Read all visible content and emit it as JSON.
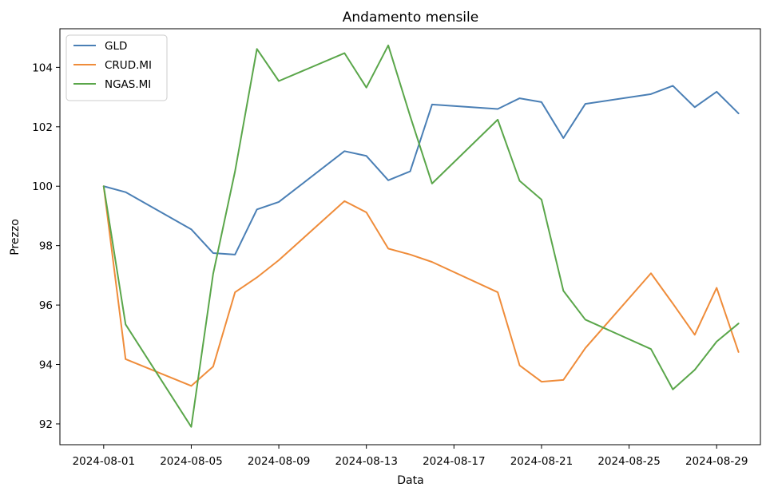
{
  "chart_data": {
    "type": "line",
    "title": "Andamento mensile",
    "xlabel": "Data",
    "ylabel": "Prezzo",
    "legend_position": "top-left",
    "grid": false,
    "xlim": [
      "2024-07-30",
      "2024-08-31"
    ],
    "ylim": [
      91.3,
      105.3
    ],
    "x_ticks": [
      "2024-08-01",
      "2024-08-05",
      "2024-08-09",
      "2024-08-13",
      "2024-08-17",
      "2024-08-21",
      "2024-08-25",
      "2024-08-29"
    ],
    "y_ticks": [
      92,
      94,
      96,
      98,
      100,
      102,
      104
    ],
    "series": [
      {
        "name": "GLD",
        "color": "#4a7fb5",
        "x": [
          "2024-08-01",
          "2024-08-02",
          "2024-08-05",
          "2024-08-06",
          "2024-08-07",
          "2024-08-08",
          "2024-08-09",
          "2024-08-12",
          "2024-08-13",
          "2024-08-14",
          "2024-08-15",
          "2024-08-16",
          "2024-08-19",
          "2024-08-20",
          "2024-08-21",
          "2024-08-22",
          "2024-08-23",
          "2024-08-26",
          "2024-08-27",
          "2024-08-28",
          "2024-08-29",
          "2024-08-30"
        ],
        "values": [
          100.0,
          99.8,
          98.55,
          97.75,
          97.7,
          99.22,
          99.47,
          101.18,
          101.02,
          100.2,
          100.5,
          102.75,
          102.6,
          102.96,
          102.83,
          101.62,
          102.77,
          103.1,
          103.38,
          102.66,
          103.18,
          102.45
        ]
      },
      {
        "name": "CRUD.MI",
        "color": "#ef8c3a",
        "x": [
          "2024-08-01",
          "2024-08-02",
          "2024-08-05",
          "2024-08-06",
          "2024-08-07",
          "2024-08-08",
          "2024-08-09",
          "2024-08-12",
          "2024-08-13",
          "2024-08-14",
          "2024-08-15",
          "2024-08-16",
          "2024-08-19",
          "2024-08-20",
          "2024-08-21",
          "2024-08-22",
          "2024-08-23",
          "2024-08-26",
          "2024-08-27",
          "2024-08-28",
          "2024-08-29",
          "2024-08-30"
        ],
        "values": [
          100.0,
          94.18,
          93.28,
          93.93,
          96.43,
          96.93,
          97.51,
          99.5,
          99.12,
          97.9,
          97.7,
          97.45,
          96.43,
          93.97,
          93.42,
          93.48,
          94.55,
          97.07,
          96.05,
          95.0,
          96.58,
          94.42
        ]
      },
      {
        "name": "NGAS.MI",
        "color": "#5aa64a",
        "x": [
          "2024-08-01",
          "2024-08-02",
          "2024-08-05",
          "2024-08-06",
          "2024-08-07",
          "2024-08-08",
          "2024-08-09",
          "2024-08-12",
          "2024-08-13",
          "2024-08-14",
          "2024-08-15",
          "2024-08-16",
          "2024-08-19",
          "2024-08-20",
          "2024-08-21",
          "2024-08-22",
          "2024-08-23",
          "2024-08-26",
          "2024-08-27",
          "2024-08-28",
          "2024-08-29",
          "2024-08-30"
        ],
        "values": [
          100.0,
          95.35,
          91.9,
          97.05,
          100.5,
          104.62,
          103.54,
          104.48,
          103.32,
          104.74,
          102.36,
          100.09,
          102.24,
          100.18,
          99.55,
          96.48,
          95.51,
          94.52,
          93.16,
          93.82,
          94.77,
          95.38
        ]
      }
    ]
  }
}
